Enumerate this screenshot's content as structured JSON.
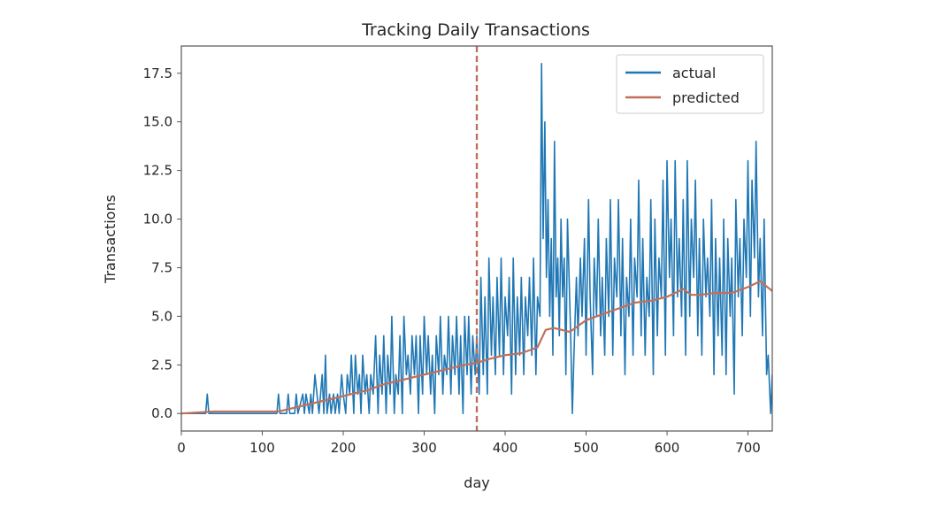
{
  "chart_data": {
    "type": "line",
    "title": "Tracking Daily Transactions",
    "xlabel": "day",
    "ylabel": "Transactions",
    "xlim": [
      0,
      730
    ],
    "ylim": [
      -0.9,
      18.9
    ],
    "xticks": [
      0,
      100,
      200,
      300,
      400,
      500,
      600,
      700
    ],
    "yticks": [
      0.0,
      2.5,
      5.0,
      7.5,
      10.0,
      12.5,
      15.0,
      17.5
    ],
    "xtick_labels": [
      "0",
      "100",
      "200",
      "300",
      "400",
      "500",
      "600",
      "700"
    ],
    "ytick_labels": [
      "0.0",
      "2.5",
      "5.0",
      "7.5",
      "10.0",
      "12.5",
      "15.0",
      "17.5"
    ],
    "grid": false,
    "legend": {
      "position": "top-right"
    },
    "vline": {
      "x": 365,
      "style": "dashed",
      "color": "#c0705a"
    },
    "series": [
      {
        "name": "actual",
        "color": "#1f77b4",
        "x": [
          0,
          30,
          32,
          34,
          60,
          118,
          120,
          122,
          130,
          132,
          134,
          140,
          142,
          144,
          150,
          152,
          154,
          158,
          160,
          162,
          165,
          170,
          172,
          174,
          176,
          178,
          180,
          183,
          185,
          188,
          190,
          193,
          195,
          198,
          200,
          203,
          205,
          208,
          210,
          213,
          215,
          218,
          220,
          222,
          224,
          227,
          229,
          232,
          234,
          237,
          240,
          243,
          245,
          248,
          250,
          253,
          255,
          258,
          260,
          263,
          265,
          268,
          270,
          273,
          275,
          278,
          280,
          283,
          285,
          288,
          290,
          293,
          295,
          298,
          300,
          303,
          305,
          308,
          310,
          313,
          315,
          318,
          320,
          323,
          325,
          328,
          330,
          333,
          335,
          338,
          340,
          343,
          345,
          348,
          350,
          353,
          355,
          358,
          360,
          363,
          365,
          368,
          370,
          373,
          375,
          378,
          380,
          383,
          385,
          388,
          390,
          393,
          395,
          398,
          400,
          403,
          405,
          408,
          410,
          413,
          415,
          418,
          420,
          423,
          425,
          428,
          430,
          433,
          435,
          438,
          440,
          443,
          445,
          447,
          449,
          451,
          453,
          455,
          457,
          459,
          461,
          463,
          465,
          467,
          469,
          471,
          473,
          475,
          477,
          479,
          481,
          483,
          485,
          488,
          490,
          493,
          495,
          498,
          500,
          503,
          505,
          508,
          510,
          513,
          515,
          518,
          520,
          523,
          525,
          528,
          530,
          533,
          535,
          538,
          540,
          543,
          545,
          548,
          550,
          553,
          555,
          558,
          560,
          563,
          565,
          568,
          570,
          573,
          575,
          578,
          580,
          583,
          585,
          588,
          590,
          593,
          595,
          598,
          600,
          603,
          605,
          608,
          610,
          613,
          615,
          618,
          620,
          623,
          625,
          628,
          630,
          633,
          635,
          638,
          640,
          643,
          645,
          648,
          650,
          653,
          655,
          658,
          660,
          663,
          665,
          668,
          670,
          673,
          675,
          678,
          680,
          683,
          685,
          688,
          690,
          693,
          695,
          698,
          700,
          703,
          705,
          708,
          710,
          713,
          715,
          718,
          720,
          723,
          725,
          728,
          730
        ],
        "y": [
          0,
          0,
          1,
          0,
          0,
          0,
          1,
          0,
          0,
          1,
          0,
          0,
          1,
          0,
          1,
          0,
          1,
          0,
          1,
          0,
          2,
          0,
          1,
          2,
          0,
          3,
          0,
          1,
          0,
          1,
          0,
          1,
          0,
          2,
          1,
          0,
          2,
          1,
          3,
          0,
          3,
          1,
          2,
          0,
          3,
          1,
          2,
          0,
          2,
          1,
          4,
          0,
          3,
          1,
          4,
          0,
          3,
          1,
          5,
          0,
          2,
          1,
          4,
          0,
          5,
          2,
          3,
          1,
          4,
          2,
          4,
          0,
          4,
          1,
          5,
          2,
          4,
          1,
          3,
          0,
          4,
          2,
          5,
          1,
          3,
          2,
          5,
          1,
          4,
          2,
          5,
          1,
          4,
          0,
          5,
          2,
          5,
          1,
          4,
          2,
          4,
          1,
          7,
          2,
          6,
          1,
          8,
          3,
          6,
          2,
          7,
          3,
          8,
          2,
          6,
          4,
          7,
          1,
          8,
          2,
          6,
          3,
          7,
          2,
          6,
          4,
          7,
          3,
          8,
          2,
          6,
          5,
          18,
          9,
          15,
          7,
          11,
          5,
          9,
          3,
          14,
          6,
          8,
          4,
          10,
          6,
          8,
          2,
          10,
          7,
          4,
          0,
          3,
          7,
          4,
          8,
          5,
          9,
          3,
          11,
          6,
          2,
          8,
          5,
          10,
          4,
          7,
          3,
          9,
          5,
          11,
          3,
          8,
          6,
          11,
          4,
          9,
          2,
          7,
          5,
          10,
          3,
          8,
          6,
          12,
          4,
          9,
          3,
          7,
          5,
          11,
          2,
          10,
          4,
          8,
          6,
          12,
          3,
          13,
          7,
          10,
          4,
          13,
          6,
          9,
          5,
          11,
          3,
          13,
          5,
          10,
          7,
          12,
          4,
          9,
          3,
          10,
          6,
          8,
          5,
          11,
          2,
          9,
          4,
          8,
          3,
          10,
          2,
          9,
          5,
          8,
          1,
          11,
          6,
          9,
          4,
          10,
          7,
          13,
          5,
          12,
          8,
          14,
          6,
          9,
          4,
          10,
          2,
          3,
          0,
          2
        ]
      },
      {
        "name": "predicted",
        "color": "#c0705a",
        "x": [
          0,
          40,
          80,
          120,
          130,
          150,
          170,
          190,
          210,
          230,
          250,
          270,
          290,
          310,
          330,
          350,
          365,
          380,
          400,
          420,
          440,
          450,
          460,
          470,
          480,
          490,
          500,
          520,
          540,
          560,
          580,
          600,
          620,
          630,
          640,
          660,
          680,
          700,
          715,
          730
        ],
        "y": [
          0.0,
          0.1,
          0.1,
          0.1,
          0.2,
          0.4,
          0.6,
          0.8,
          1.0,
          1.2,
          1.5,
          1.7,
          1.9,
          2.1,
          2.3,
          2.5,
          2.6,
          2.8,
          3.0,
          3.1,
          3.4,
          4.3,
          4.4,
          4.3,
          4.2,
          4.5,
          4.8,
          5.1,
          5.4,
          5.7,
          5.8,
          6.0,
          6.4,
          6.1,
          6.1,
          6.2,
          6.2,
          6.5,
          6.8,
          6.3
        ]
      }
    ]
  }
}
